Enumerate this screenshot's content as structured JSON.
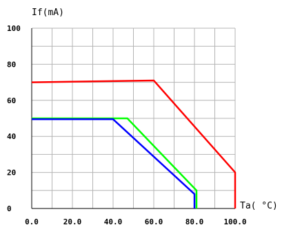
{
  "chart_data": {
    "type": "line",
    "ylabel": "If(mA)",
    "xlabel": "Ta( °C)",
    "xlim": [
      0,
      100
    ],
    "ylim": [
      0,
      100
    ],
    "grid": true,
    "x_ticks": [
      0,
      10,
      20,
      30,
      40,
      50,
      60,
      70,
      80,
      90,
      100
    ],
    "x_tick_labels": [
      "0.0",
      "",
      "20.0",
      "",
      "40.0",
      "",
      "60.0",
      "",
      "80.0",
      "",
      "100.0"
    ],
    "y_ticks": [
      0,
      10,
      20,
      30,
      40,
      50,
      60,
      70,
      80,
      90,
      100
    ],
    "y_tick_labels": [
      "0",
      "",
      "20",
      "",
      "40",
      "",
      "60",
      "",
      "80",
      "",
      "100"
    ],
    "series": [
      {
        "color": "#ff0000",
        "points": [
          [
            0,
            70
          ],
          [
            60,
            71
          ],
          [
            100,
            20
          ],
          [
            100,
            0
          ]
        ]
      },
      {
        "color": "#00ff00",
        "points": [
          [
            0,
            50
          ],
          [
            47,
            50
          ],
          [
            81,
            10
          ],
          [
            81,
            0
          ]
        ]
      },
      {
        "color": "#0000ff",
        "points": [
          [
            0,
            49.5
          ],
          [
            40,
            49.5
          ],
          [
            80,
            8
          ],
          [
            80,
            0
          ]
        ]
      }
    ]
  }
}
